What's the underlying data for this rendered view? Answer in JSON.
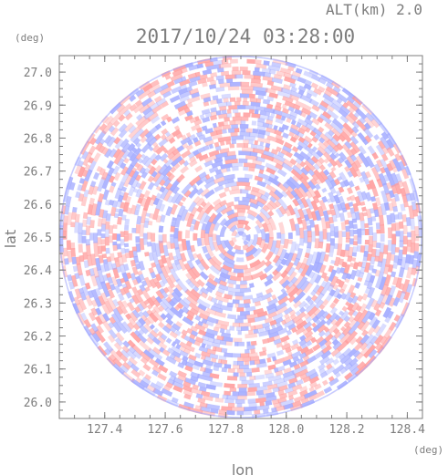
{
  "header": {
    "altitude": "ALT(km) 2.0",
    "timestamp": "2017/10/24 03:28:00"
  },
  "chart_data": {
    "type": "heatmap",
    "title": "2017/10/24 03:28:00",
    "subtitle": "ALT(km) 2.0",
    "xlabel": "lon",
    "ylabel": "lat",
    "x_unit": "(deg)",
    "y_unit": "(deg)",
    "xlim": [
      127.25,
      128.45
    ],
    "ylim": [
      25.95,
      27.05
    ],
    "x_ticks": [
      127.4,
      127.6,
      127.8,
      128.0,
      128.2,
      128.4
    ],
    "x_tick_labels": [
      "127.4",
      "127.6",
      "127.8",
      "128.0",
      "128.2",
      "128.4"
    ],
    "y_ticks": [
      26.0,
      26.1,
      26.2,
      26.3,
      26.4,
      26.5,
      26.6,
      26.7,
      26.8,
      26.9,
      27.0
    ],
    "y_tick_labels": [
      "26.0",
      "26.1",
      "26.2",
      "26.3",
      "26.4",
      "26.5",
      "26.6",
      "26.7",
      "26.8",
      "26.9",
      "27.0"
    ],
    "field": {
      "shape": "circle",
      "center": [
        127.85,
        26.5
      ],
      "radius_deg_lat": 0.55,
      "colors": {
        "positive": "#ff9c9c",
        "negative": "#a0a8ff",
        "neutral": "#ffffff"
      }
    },
    "grid": false
  }
}
